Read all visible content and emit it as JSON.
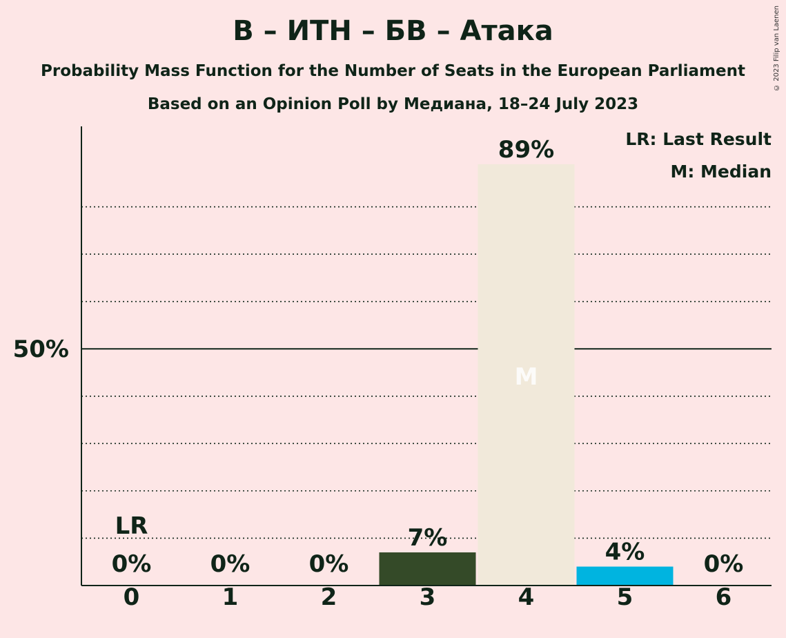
{
  "title": "В – ИТН – БВ – Атака",
  "subtitle": "Probability Mass Function for the Number of Seats in the European Parliament",
  "source": "Based on an Opinion Poll by Медиана, 18–24 July 2023",
  "copyright": "© 2023 Filip van Laenen",
  "legend": {
    "last_result": "LR: Last Result",
    "median": "M: Median"
  },
  "colors": {
    "background": "#fde6e6",
    "text": "#0f2418",
    "bar_default": "#344a28",
    "bar_median": "#f1e9da",
    "bar_above": "#00b4e0"
  },
  "chart_data": {
    "type": "bar",
    "categories": [
      "0",
      "1",
      "2",
      "3",
      "4",
      "5",
      "6"
    ],
    "values": [
      0,
      0,
      0,
      7,
      89,
      4,
      0
    ],
    "value_labels": [
      "0%",
      "0%",
      "0%",
      "7%",
      "89%",
      "4%",
      "0%"
    ],
    "bar_colors": [
      "#344a28",
      "#344a28",
      "#344a28",
      "#344a28",
      "#f1e9da",
      "#00b4e0",
      "#344a28"
    ],
    "ylim": [
      0,
      97
    ],
    "y_major_tick": 50,
    "y_major_tick_label": "50%",
    "y_minor_ticks": [
      10,
      20,
      30,
      40,
      60,
      70,
      80
    ],
    "last_result_category": "0",
    "last_result_label": "LR",
    "median_category": "4",
    "median_label": "M",
    "legend_position": "top-right",
    "grid": true
  }
}
